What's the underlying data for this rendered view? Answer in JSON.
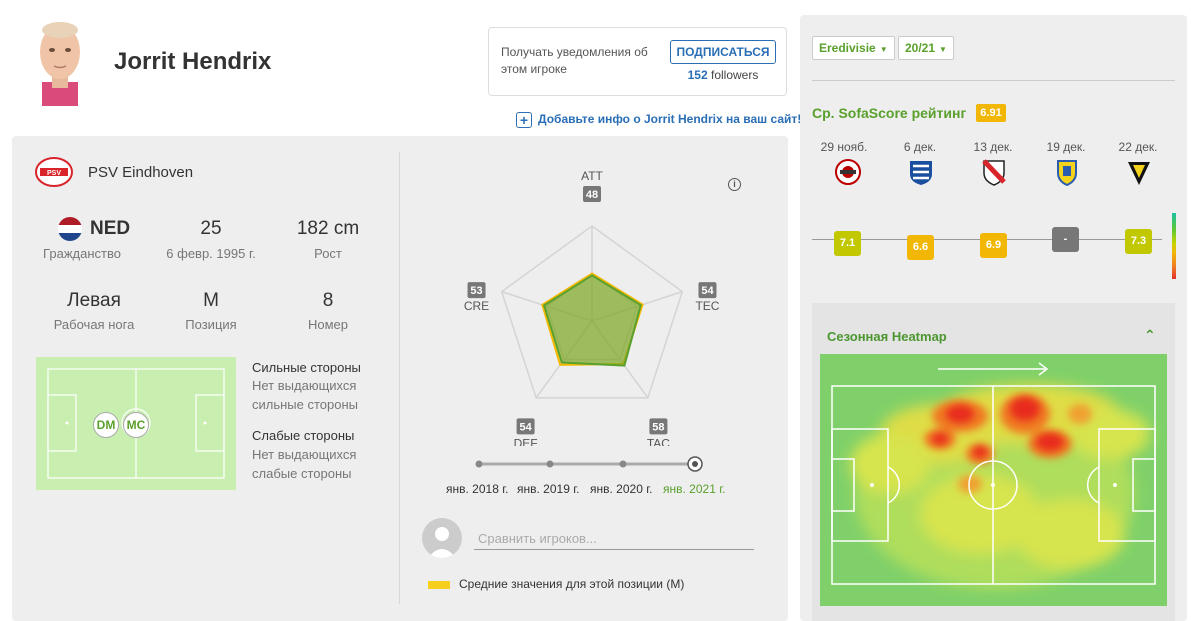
{
  "player": {
    "name": "Jorrit Hendrix",
    "team": "PSV Eindhoven"
  },
  "follow": {
    "text": "Получать уведомления об этом игроке",
    "button": "ПОДПИСАТЬСЯ",
    "count": "152",
    "count_label": "followers"
  },
  "add_info": "Добавьте инфо о Jorrit Hendrix на ваш сайт!",
  "stats": {
    "nationality": {
      "value": "NED",
      "label": "Гражданство"
    },
    "age": {
      "value": "25",
      "label": "6 февр. 1995 г."
    },
    "height": {
      "value": "182 cm",
      "label": "Рост"
    },
    "foot": {
      "value": "Левая",
      "label": "Рабочая нога"
    },
    "position": {
      "value": "M",
      "label": "Позиция"
    },
    "number": {
      "value": "8",
      "label": "Номер"
    }
  },
  "positions": [
    "DM",
    "MC"
  ],
  "strengths": {
    "title": "Сильные стороны",
    "text": "Нет выдающихся сильные стороны"
  },
  "weaknesses": {
    "title": "Слабые стороны",
    "text": "Нет выдающихся слабые стороны"
  },
  "radar": {
    "attributes": [
      {
        "name": "ATT",
        "value": 48
      },
      {
        "name": "TEC",
        "value": 54
      },
      {
        "name": "TAC",
        "value": 58
      },
      {
        "name": "DEF",
        "value": 54
      },
      {
        "name": "CRE",
        "value": 53
      }
    ],
    "average": [
      50,
      56,
      56,
      57,
      55
    ],
    "player_color": "#5aa02c",
    "average_color": "#f5b800"
  },
  "timeline": {
    "labels": [
      "янв. 2018 г.",
      "янв. 2019 г.",
      "янв. 2020 г.",
      "янв. 2021 г."
    ],
    "active_index": 3
  },
  "compare_placeholder": "Сравнить игроков...",
  "legend_text": "Средние значения для этой позиции (M)",
  "filters": {
    "league": "Eredivisie",
    "season": "20/21"
  },
  "rating": {
    "title": "Ср. SofaScore рейтинг",
    "value": "6.91",
    "matches": [
      {
        "date": "29 нояб.",
        "rating": "7.1",
        "color": "#c2c800",
        "logo": "red-white-circle"
      },
      {
        "date": "6 дек.",
        "rating": "6.6",
        "color": "#f2b705",
        "logo": "blue-white-hearts"
      },
      {
        "date": "13 дек.",
        "rating": "6.9",
        "color": "#f2b705",
        "logo": "red-black-shield"
      },
      {
        "date": "19 дек.",
        "rating": "-",
        "color": "#777777",
        "logo": "yellow-blue-shield"
      },
      {
        "date": "22 дек.",
        "rating": "7.3",
        "color": "#c2c800",
        "logo": "yellow-black-shield"
      }
    ]
  },
  "heatmap": {
    "title": "Сезонная Heatmap"
  },
  "colors": {
    "accent_green": "#5aa02c",
    "link_blue": "#2a6eb5",
    "panel_bg": "#eeeeee"
  }
}
